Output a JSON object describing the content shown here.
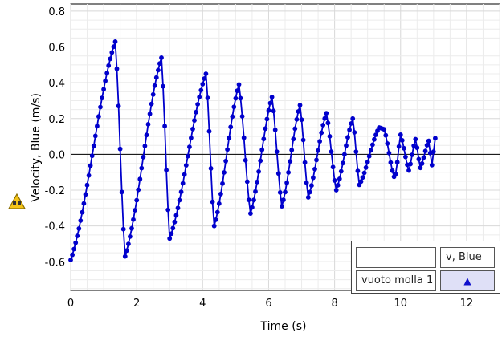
{
  "chart_data": {
    "type": "line",
    "xlabel": "Time (s)",
    "ylabel": "Velocity, Blue (m/s)",
    "xlim": [
      0,
      13
    ],
    "ylim": [
      -0.76,
      0.84
    ],
    "x_ticks": [
      "0",
      "2",
      "4",
      "6",
      "8",
      "10",
      "12"
    ],
    "y_ticks": [
      "-0.6",
      "-0.4",
      "-0.2",
      "0.0",
      "0.2",
      "0.4",
      "0.6",
      "0.8"
    ],
    "grid": true,
    "legend_placement": "bottom-right",
    "series": [
      {
        "name": "v, Blue",
        "color": "#0000cc",
        "sample_interval": 0.05,
        "cycles": [
          {
            "t_min": 0.0,
            "v_min": -0.59,
            "t_max": 1.35,
            "v_max": 0.63
          },
          {
            "t_min": 1.65,
            "v_min": -0.57,
            "t_max": 2.75,
            "v_max": 0.54
          },
          {
            "t_min": 3.0,
            "v_min": -0.47,
            "t_max": 4.1,
            "v_max": 0.45
          },
          {
            "t_min": 4.35,
            "v_min": -0.4,
            "t_max": 5.1,
            "v_max": 0.39
          },
          {
            "t_min": 5.45,
            "v_min": -0.33,
            "t_max": 6.1,
            "v_max": 0.32
          },
          {
            "t_min": 6.4,
            "v_min": -0.29,
            "t_max": 6.95,
            "v_max": 0.275
          },
          {
            "t_min": 7.2,
            "v_min": -0.24,
            "t_max": 7.75,
            "v_max": 0.23
          },
          {
            "t_min": 8.05,
            "v_min": -0.2,
            "t_max": 8.55,
            "v_max": 0.2
          },
          {
            "t_min": 8.75,
            "v_min": -0.17,
            "t_max": 9.35,
            "v_max": 0.15
          },
          {
            "t_min": 9.8,
            "v_min": -0.125,
            "t_max": 9.5,
            "v_max": 0.14
          },
          {
            "t_min": 9.85,
            "v_min": -0.11,
            "t_max": 10.0,
            "v_max": 0.11
          },
          {
            "t_min": 10.25,
            "v_min": -0.09,
            "t_max": 10.45,
            "v_max": 0.085
          },
          {
            "t_min": 10.6,
            "v_min": -0.075,
            "t_max": 10.85,
            "v_max": 0.075
          },
          {
            "t_min": 10.95,
            "v_min": -0.06,
            "t_max": 11.05,
            "v_max": 0.09
          }
        ]
      }
    ]
  },
  "legend": {
    "swatch_label": "",
    "series_label": "v, Blue",
    "run_label": "vuoto molla 1",
    "marker_symbol": "▲"
  },
  "warning_icon": "warning-triangle-icon"
}
